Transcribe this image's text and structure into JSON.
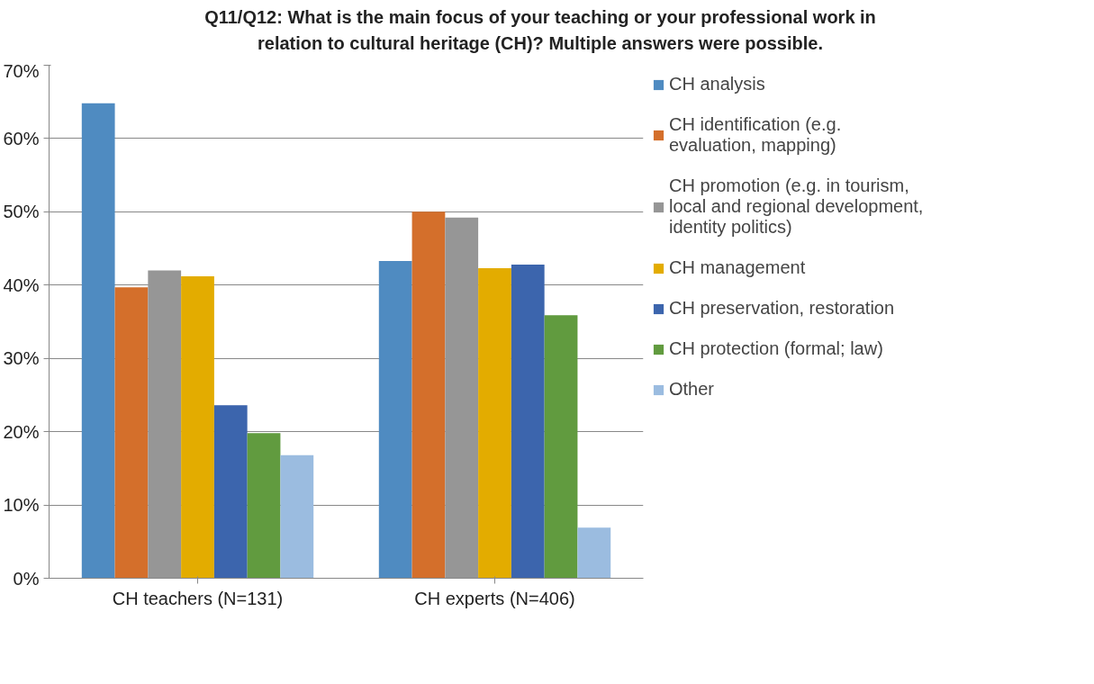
{
  "chart_data": {
    "type": "bar",
    "title": "Q11/Q12: What is the main focus of your teaching or your professional work in relation to cultural heritage (CH)? Multiple answers were possible.",
    "categories": [
      "CH teachers (N=131)",
      "CH experts (N=406)"
    ],
    "series": [
      {
        "name": "CH analysis",
        "color": "#4f8bc1",
        "values": [
          64.8,
          43.3
        ]
      },
      {
        "name": "CH identification (e.g. evaluation, mapping)",
        "color": "#d46f2b",
        "values": [
          39.7,
          50.0
        ]
      },
      {
        "name": "CH promotion (e.g. in tourism, local and regional development, identity politics)",
        "color": "#969696",
        "values": [
          42.0,
          49.2
        ]
      },
      {
        "name": "CH management",
        "color": "#e3ac00",
        "values": [
          41.2,
          42.3
        ]
      },
      {
        "name": "CH preservation, restoration",
        "color": "#3c65ad",
        "values": [
          23.6,
          42.8
        ]
      },
      {
        "name": "CH protection (formal; law)",
        "color": "#619b3f",
        "values": [
          19.8,
          35.9
        ]
      },
      {
        "name": "Other",
        "color": "#9bbce0",
        "values": [
          16.8,
          6.9
        ]
      }
    ],
    "ylim": [
      0,
      70
    ],
    "yticks": [
      {
        "value": 0,
        "label": "0%"
      },
      {
        "value": 10,
        "label": "10%"
      },
      {
        "value": 20,
        "label": "20%"
      },
      {
        "value": 30,
        "label": "30%"
      },
      {
        "value": 40,
        "label": "40%"
      },
      {
        "value": 50,
        "label": "50%"
      },
      {
        "value": 60,
        "label": "60%"
      },
      {
        "value": 70,
        "label": "70%"
      }
    ],
    "grid": "y",
    "legend": "right"
  }
}
